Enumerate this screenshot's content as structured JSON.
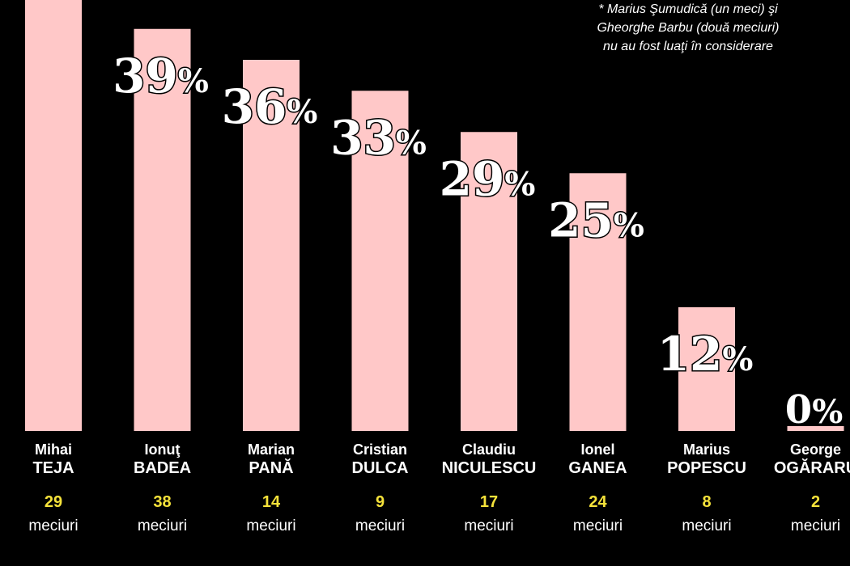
{
  "note": {
    "line1": "* Marius Şumudică (un meci) şi",
    "line2": "Gheorghe Barbu (două meciuri)",
    "line3": "nu au fost luaţi în considerare"
  },
  "colors": {
    "background": "#000000",
    "bar": "#ffc8c8",
    "matches_count": "#f5e23a",
    "text": "#ffffff"
  },
  "chart_data": {
    "type": "bar",
    "categories": [
      "Mihai TEJA",
      "Ionuţ BADEA",
      "Marian PANĂ",
      "Cristian DULCA",
      "Claudiu NICULESCU",
      "Ionel GANEA",
      "Marius POPESCU",
      "George OGĂRARU"
    ],
    "values": [
      null,
      39,
      36,
      33,
      29,
      25,
      12,
      0
    ],
    "value_labels": [
      "",
      "39%",
      "36%",
      "33%",
      "29%",
      "25%",
      "12%",
      "0%"
    ],
    "unit": "%",
    "ylim": [
      0,
      50
    ],
    "grid": false,
    "legend": "none",
    "players": [
      {
        "first": "Mihai",
        "last": "TEJA",
        "matches": "29",
        "matches_label": "meciuri",
        "value": null,
        "label": ""
      },
      {
        "first": "Ionuţ",
        "last": "BADEA",
        "matches": "38",
        "matches_label": "meciuri",
        "value": 39,
        "label": "39%"
      },
      {
        "first": "Marian",
        "last": "PANĂ",
        "matches": "14",
        "matches_label": "meciuri",
        "value": 36,
        "label": "36%"
      },
      {
        "first": "Cristian",
        "last": "DULCA",
        "matches": "9",
        "matches_label": "meciuri",
        "value": 33,
        "label": "33%"
      },
      {
        "first": "Claudiu",
        "last": "NICULESCU",
        "matches": "17",
        "matches_label": "meciuri",
        "value": 29,
        "label": "29%"
      },
      {
        "first": "Ionel",
        "last": "GANEA",
        "matches": "24",
        "matches_label": "meciuri",
        "value": 25,
        "label": "25%"
      },
      {
        "first": "Marius",
        "last": "POPESCU",
        "matches": "8",
        "matches_label": "meciuri",
        "value": 12,
        "label": "12%"
      },
      {
        "first": "George",
        "last": "OGĂRARU",
        "matches": "2",
        "matches_label": "meciuri",
        "value": 0,
        "label": "0%"
      }
    ]
  }
}
